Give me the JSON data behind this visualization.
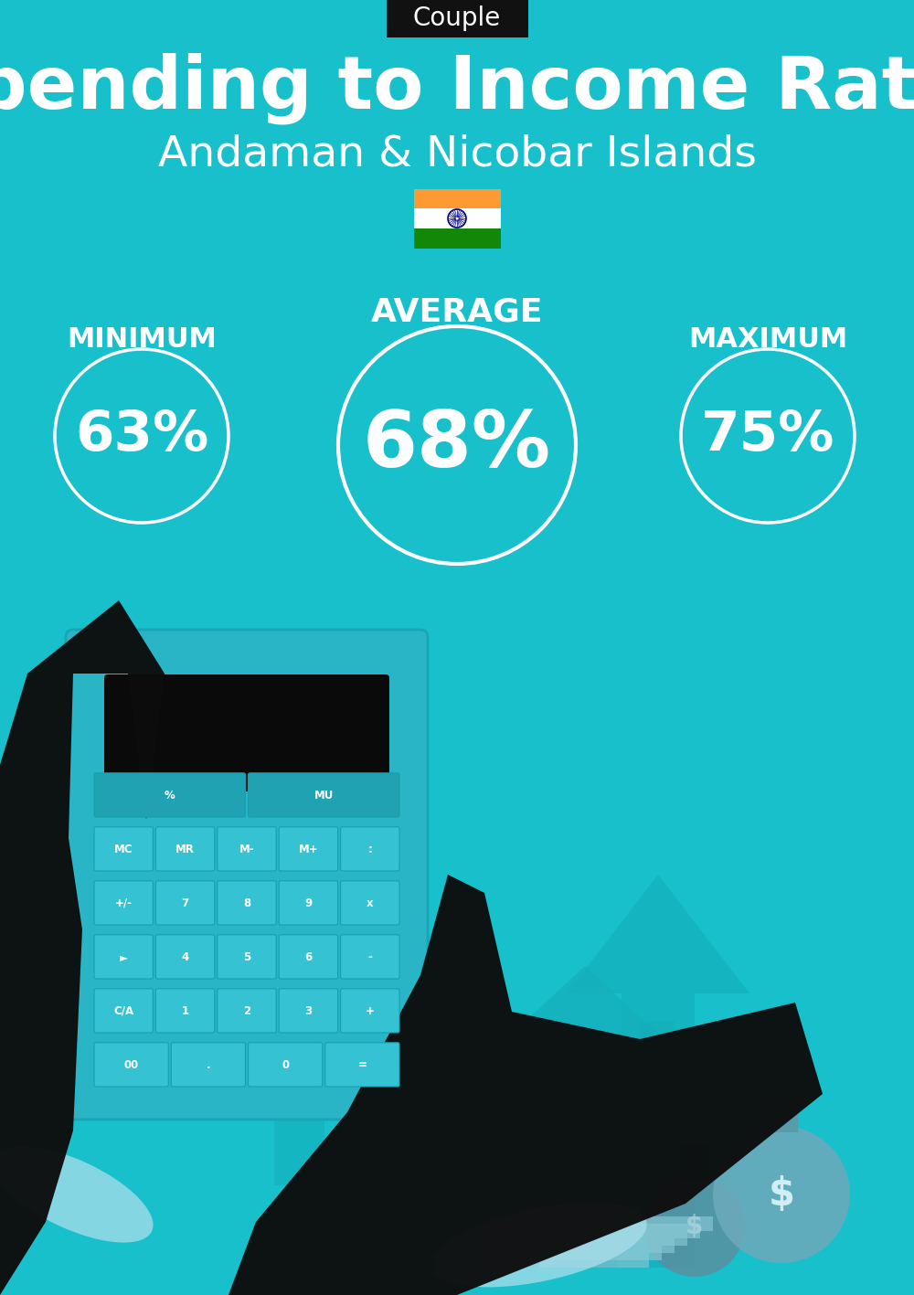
{
  "bg_color": "#17C0CB",
  "title_tag": "Couple",
  "title_tag_bg": "#111111",
  "title_tag_color": "#ffffff",
  "main_title": "Spending to Income Ratio",
  "subtitle": "Andaman & Nicobar Islands",
  "text_color": "#ffffff",
  "min_label": "MINIMUM",
  "avg_label": "AVERAGE",
  "max_label": "MAXIMUM",
  "min_value": "63%",
  "avg_value": "68%",
  "max_value": "75%",
  "circle_color": "#ffffff",
  "circle_linewidth": 2.5,
  "flag_stripe_saffron": "#FF9933",
  "flag_stripe_white": "#FFFFFF",
  "flag_stripe_green": "#138808",
  "flag_ashoka_color": "#000080",
  "arrow_color": "#13adb8",
  "house_color": "#14aebb",
  "calc_body_color": "#29b5c5",
  "calc_screen_color": "#0a0a0a",
  "btn_color": "#35c2d2",
  "btn_dark_color": "#20a2b2",
  "hand_color": "#0d0d0d",
  "cuff_color": "#aadeea",
  "bag1_color": "#5a8fa0",
  "bag2_color": "#6aaabb",
  "money_color": "#88c8d5"
}
